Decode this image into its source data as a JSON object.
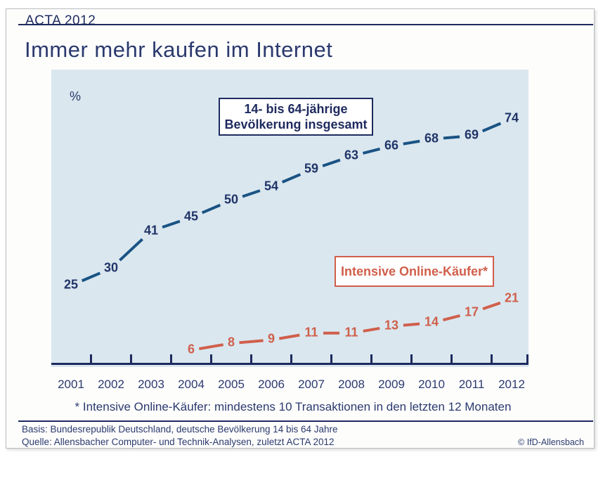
{
  "header": {
    "report_label": "ACTA 2012",
    "title": "Immer mehr kaufen im Internet"
  },
  "chart_data": {
    "type": "line",
    "title": "Immer mehr kaufen im Internet",
    "unit_label": "%",
    "xlabel": "",
    "ylabel": "%",
    "ylim": [
      0,
      88
    ],
    "grid": false,
    "legend_position": "inline-boxes",
    "categories": [
      "2001",
      "2002",
      "2003",
      "2004",
      "2005",
      "2006",
      "2007",
      "2008",
      "2009",
      "2010",
      "2011",
      "2012"
    ],
    "series": [
      {
        "name": "14- bis 64-jährige Bevölkerung insgesamt",
        "color": "#1a5384",
        "label_color": "#203468",
        "start_index": 0,
        "values": [
          25,
          30,
          41,
          45,
          50,
          54,
          59,
          63,
          66,
          68,
          69,
          74
        ]
      },
      {
        "name": "Intensive Online-Käufer*",
        "color": "#d05f4b",
        "label_color": "#d05f4b",
        "start_index": 3,
        "values": [
          6,
          8,
          9,
          11,
          11,
          13,
          14,
          17,
          21
        ]
      }
    ],
    "axis_color": "#1e2a5e",
    "plot_background": "#dae7ef"
  },
  "footnote": "* Intensive Online-Käufer: mindestens 10 Transaktionen in den letzten 12 Monaten",
  "footer": {
    "basis": "Basis: Bundesrepublik Deutschland, deutsche Bevölkerung 14 bis 64 Jahre",
    "quelle": "Quelle: Allensbacher Computer- und Technik-Analysen, zuletzt ACTA 2012",
    "copyright": "© IfD-Allensbach"
  },
  "colors": {
    "navy_text": "#2b3a6e",
    "rule_navy": "#1e2a5e",
    "card_border": "#b9bcbe"
  }
}
